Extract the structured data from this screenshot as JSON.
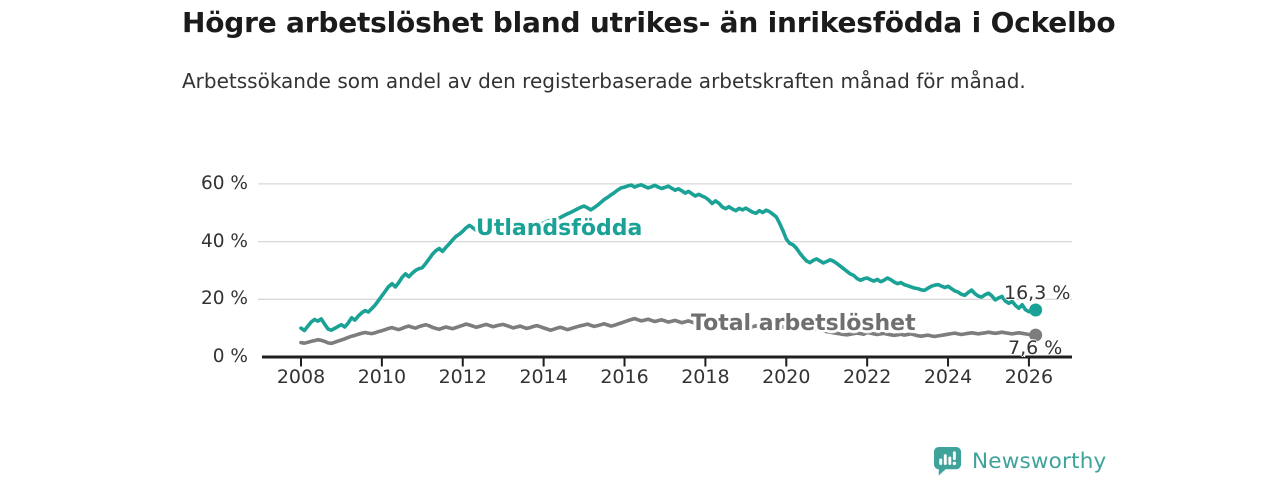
{
  "header": {
    "title": "Högre arbetslöshet bland utrikes- än inrikesfödda i Ockelbo",
    "subtitle": "Arbetssökande som andel av den registerbaserade arbetskraften månad för månad."
  },
  "colors": {
    "foreign_line": "#19a295",
    "total_line": "#7d7d7d",
    "total_label": "#6f6f6f",
    "grid": "#d8d8d8",
    "axis": "#1f1f1f",
    "text": "#333333",
    "title_text": "#1b1b1b",
    "brand": "#3fa39b"
  },
  "chart_data": {
    "type": "line",
    "title": "Högre arbetslöshet bland utrikes- än inrikesfödda i Ockelbo",
    "subtitle": "Arbetssökande som andel av den registerbaserade arbetskraften månad för månad.",
    "unit": "%",
    "grid": "horizontal",
    "legend_position": "inline-labels",
    "x_interval": "monthly",
    "x_start": "2008-01",
    "x_end": "2026-03",
    "ylim": [
      0,
      63
    ],
    "x_ticks": [
      {
        "label": "2008",
        "year": 2008
      },
      {
        "label": "2010",
        "year": 2010
      },
      {
        "label": "2012",
        "year": 2012
      },
      {
        "label": "2014",
        "year": 2014
      },
      {
        "label": "2016",
        "year": 2016
      },
      {
        "label": "2018",
        "year": 2018
      },
      {
        "label": "2020",
        "year": 2020
      },
      {
        "label": "2022",
        "year": 2022
      },
      {
        "label": "2024",
        "year": 2024
      },
      {
        "label": "2026",
        "year": 2026
      }
    ],
    "y_ticks": [
      {
        "label": "0 %",
        "value": 0
      },
      {
        "label": "20 %",
        "value": 20
      },
      {
        "label": "40 %",
        "value": 40
      },
      {
        "label": "60 %",
        "value": 60
      }
    ],
    "series": [
      {
        "name": "Utlandsfödda",
        "end_label": "16,3 %",
        "end_value": 16.3,
        "values": [
          10.0,
          9.2,
          10.6,
          12.1,
          13.0,
          12.4,
          13.2,
          11.4,
          9.7,
          9.3,
          9.9,
          10.6,
          11.2,
          10.4,
          11.8,
          13.6,
          12.8,
          14.2,
          15.3,
          16.1,
          15.6,
          16.8,
          18.0,
          19.6,
          21.2,
          22.8,
          24.4,
          25.4,
          24.3,
          25.8,
          27.6,
          28.8,
          27.8,
          29.0,
          30.0,
          30.6,
          31.0,
          32.4,
          34.0,
          35.6,
          36.8,
          37.6,
          36.6,
          38.0,
          39.2,
          40.6,
          41.8,
          42.6,
          43.6,
          44.8,
          45.6,
          44.8,
          43.9,
          44.4,
          43.5,
          42.9,
          43.8,
          44.3,
          43.6,
          44.1,
          43.9,
          44.5,
          43.7,
          42.9,
          43.4,
          42.8,
          43.3,
          44.0,
          44.6,
          45.1,
          45.5,
          46.0,
          46.4,
          47.0,
          47.5,
          47.1,
          47.8,
          48.4,
          49.0,
          49.6,
          50.1,
          50.7,
          51.3,
          51.9,
          52.3,
          51.7,
          51.0,
          51.8,
          52.6,
          53.6,
          54.6,
          55.4,
          56.2,
          57.0,
          57.9,
          58.6,
          58.9,
          59.3,
          59.6,
          58.9,
          59.4,
          59.7,
          59.1,
          58.6,
          59.0,
          59.5,
          58.9,
          58.4,
          58.8,
          59.2,
          58.5,
          57.8,
          58.3,
          57.6,
          56.8,
          57.4,
          56.6,
          55.8,
          56.4,
          55.8,
          55.3,
          54.4,
          53.2,
          54.1,
          53.3,
          52.0,
          51.4,
          52.1,
          51.3,
          50.7,
          51.5,
          51.0,
          51.6,
          50.9,
          50.2,
          49.8,
          50.7,
          50.1,
          50.9,
          50.4,
          49.5,
          48.6,
          46.4,
          43.8,
          40.9,
          39.4,
          38.9,
          37.7,
          36.0,
          34.6,
          33.3,
          32.7,
          33.5,
          34.0,
          33.3,
          32.6,
          33.1,
          33.7,
          33.2,
          32.4,
          31.5,
          30.6,
          29.7,
          28.8,
          28.3,
          27.2,
          26.6,
          27.1,
          27.4,
          26.8,
          26.3,
          26.9,
          26.1,
          26.6,
          27.4,
          26.8,
          26.0,
          25.4,
          25.8,
          25.1,
          24.7,
          24.3,
          23.9,
          23.7,
          23.3,
          23.1,
          23.8,
          24.5,
          24.9,
          25.1,
          24.6,
          24.1,
          24.5,
          23.7,
          22.9,
          22.5,
          21.7,
          21.4,
          22.4,
          23.2,
          21.9,
          21.1,
          20.8,
          21.6,
          22.1,
          21.2,
          19.8,
          20.5,
          21.0,
          19.4,
          18.6,
          19.3,
          17.9,
          16.9,
          18.1,
          16.4,
          15.7,
          16.1,
          16.3
        ]
      },
      {
        "name": "Total arbetslöshet",
        "end_label": "7,6 %",
        "end_value": 7.6,
        "values": [
          5.0,
          4.8,
          5.1,
          5.4,
          5.7,
          6.0,
          5.8,
          5.4,
          4.9,
          4.7,
          5.1,
          5.5,
          5.9,
          6.3,
          6.8,
          7.2,
          7.5,
          7.9,
          8.2,
          8.5,
          8.3,
          8.1,
          8.4,
          8.8,
          9.1,
          9.5,
          9.9,
          10.2,
          9.8,
          9.5,
          9.9,
          10.4,
          10.7,
          10.3,
          10.0,
          10.5,
          10.9,
          11.2,
          10.8,
          10.3,
          9.9,
          9.6,
          10.0,
          10.4,
          10.1,
          9.8,
          10.2,
          10.6,
          11.0,
          11.4,
          11.1,
          10.7,
          10.3,
          10.6,
          11.0,
          11.3,
          10.9,
          10.5,
          10.8,
          11.1,
          11.3,
          10.9,
          10.5,
          10.1,
          10.4,
          10.7,
          10.3,
          9.9,
          10.2,
          10.6,
          10.9,
          10.5,
          10.1,
          9.7,
          9.3,
          9.6,
          10.0,
          10.3,
          9.9,
          9.5,
          9.8,
          10.2,
          10.5,
          10.8,
          11.1,
          11.4,
          11.0,
          10.6,
          10.9,
          11.2,
          11.5,
          11.1,
          10.7,
          11.0,
          11.4,
          11.8,
          12.2,
          12.6,
          13.0,
          13.3,
          12.9,
          12.5,
          12.8,
          13.1,
          12.7,
          12.3,
          12.6,
          12.9,
          12.5,
          12.1,
          12.4,
          12.7,
          12.3,
          11.9,
          12.2,
          12.5,
          12.1,
          11.7,
          12.0,
          12.3,
          11.9,
          11.5,
          11.1,
          11.4,
          11.7,
          11.3,
          10.9,
          11.2,
          11.5,
          11.1,
          10.7,
          11.0,
          10.6,
          10.2,
          10.5,
          10.8,
          10.4,
          10.0,
          10.3,
          10.6,
          10.2,
          9.8,
          10.1,
          10.4,
          10.7,
          11.0,
          11.4,
          11.7,
          11.3,
          10.9,
          10.6,
          10.2,
          9.9,
          9.6,
          9.3,
          9.0,
          8.8,
          8.6,
          8.4,
          8.2,
          8.0,
          7.8,
          7.7,
          7.9,
          8.1,
          8.3,
          8.1,
          7.9,
          8.5,
          8.3,
          8.0,
          7.8,
          8.0,
          8.2,
          7.9,
          7.7,
          7.5,
          7.7,
          7.9,
          7.6,
          7.8,
          8.0,
          7.7,
          7.4,
          7.2,
          7.4,
          7.6,
          7.3,
          7.1,
          7.3,
          7.5,
          7.7,
          7.9,
          8.1,
          8.3,
          8.0,
          7.8,
          8.0,
          8.2,
          8.4,
          8.2,
          8.0,
          8.2,
          8.4,
          8.6,
          8.4,
          8.2,
          8.4,
          8.6,
          8.4,
          8.2,
          8.0,
          8.2,
          8.4,
          8.2,
          8.0,
          7.8,
          7.7,
          7.6
        ]
      }
    ]
  },
  "footer": {
    "brand": "Newsworthy"
  }
}
